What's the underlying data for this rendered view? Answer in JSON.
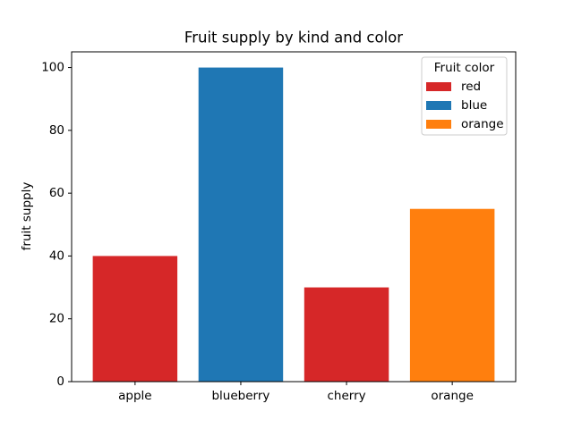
{
  "chart_data": {
    "type": "bar",
    "title": "Fruit supply by kind and color",
    "y_label": "fruit supply",
    "categories": [
      "apple",
      "blueberry",
      "cherry",
      "orange"
    ],
    "series": [
      {
        "name": "red",
        "color": "#d62728",
        "values": [
          40,
          null,
          30,
          null
        ]
      },
      {
        "name": "blue",
        "color": "#1f77b4",
        "values": [
          null,
          100,
          null,
          null
        ]
      },
      {
        "name": "orange",
        "color": "#ff7f0e",
        "values": [
          null,
          null,
          null,
          55
        ]
      }
    ],
    "legend_title": "Fruit color",
    "legend_position": "upper-right",
    "ylim": [
      0,
      105
    ],
    "yticks": [
      0,
      20,
      40,
      60,
      80,
      100
    ],
    "grid": false
  }
}
